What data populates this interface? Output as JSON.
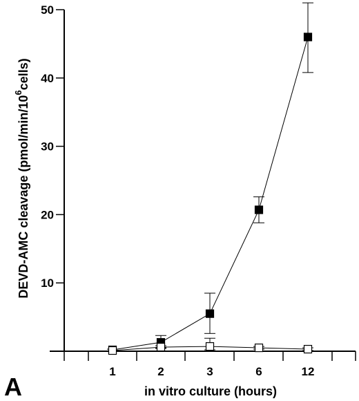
{
  "chart_data": {
    "type": "line",
    "panel_label": "A",
    "xlabel": "in vitro culture (hours)",
    "ylabel_main": "DEVD-AMC cleavage (pmol/min/10",
    "ylabel_sup": "6",
    "ylabel_tail": "cells)",
    "categories": [
      "1",
      "2",
      "3",
      "6",
      "12"
    ],
    "ylim": [
      0,
      50
    ],
    "yticks": [
      0,
      10,
      20,
      30,
      40,
      50
    ],
    "ytick_labels": [
      "",
      "10",
      "20",
      "30",
      "40",
      "50"
    ],
    "grid": false,
    "legend": "none",
    "series": [
      {
        "marker": "filled-square",
        "color": "#000000",
        "values": [
          0.2,
          1.3,
          5.5,
          20.7,
          46.0
        ],
        "err_upper": [
          0.3,
          2.3,
          8.5,
          22.6,
          51.0
        ],
        "err_lower": [
          0.0,
          0.5,
          2.6,
          18.8,
          40.8
        ]
      },
      {
        "marker": "open-square",
        "color": "#000000",
        "values": [
          0.1,
          0.6,
          0.7,
          0.5,
          0.3
        ],
        "err_upper": [
          0.2,
          0.8,
          1.9,
          0.7,
          0.5
        ],
        "err_lower": [
          0.0,
          0.4,
          0.2,
          0.3,
          0.1
        ]
      }
    ]
  }
}
